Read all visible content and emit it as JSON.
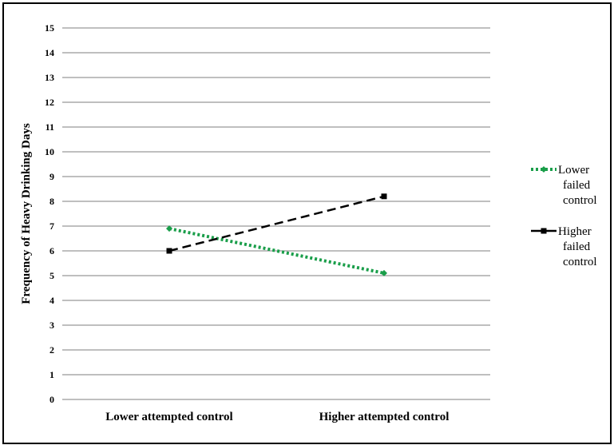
{
  "chart_data": {
    "type": "line",
    "title": "",
    "xlabel": "",
    "ylabel": "Frequency of Heavy Drinking Days",
    "ylim": [
      0,
      15
    ],
    "yticks": [
      "0",
      "1",
      "2",
      "3",
      "4",
      "5",
      "6",
      "7",
      "8",
      "9",
      "10",
      "11",
      "12",
      "13",
      "14",
      "15"
    ],
    "categories": [
      "Lower attempted control",
      "Higher attempted control"
    ],
    "grid": true,
    "legend_position": "right",
    "series": [
      {
        "name_lines": [
          "Lower",
          "failed",
          "control"
        ],
        "values": [
          6.9,
          5.1
        ],
        "color": "#1a9e4a",
        "style": "dotted",
        "marker": "diamond"
      },
      {
        "name_lines": [
          "Higher",
          "failed",
          "control"
        ],
        "values": [
          6.0,
          8.2
        ],
        "color": "#000000",
        "style": "dashed",
        "marker": "square"
      }
    ]
  }
}
